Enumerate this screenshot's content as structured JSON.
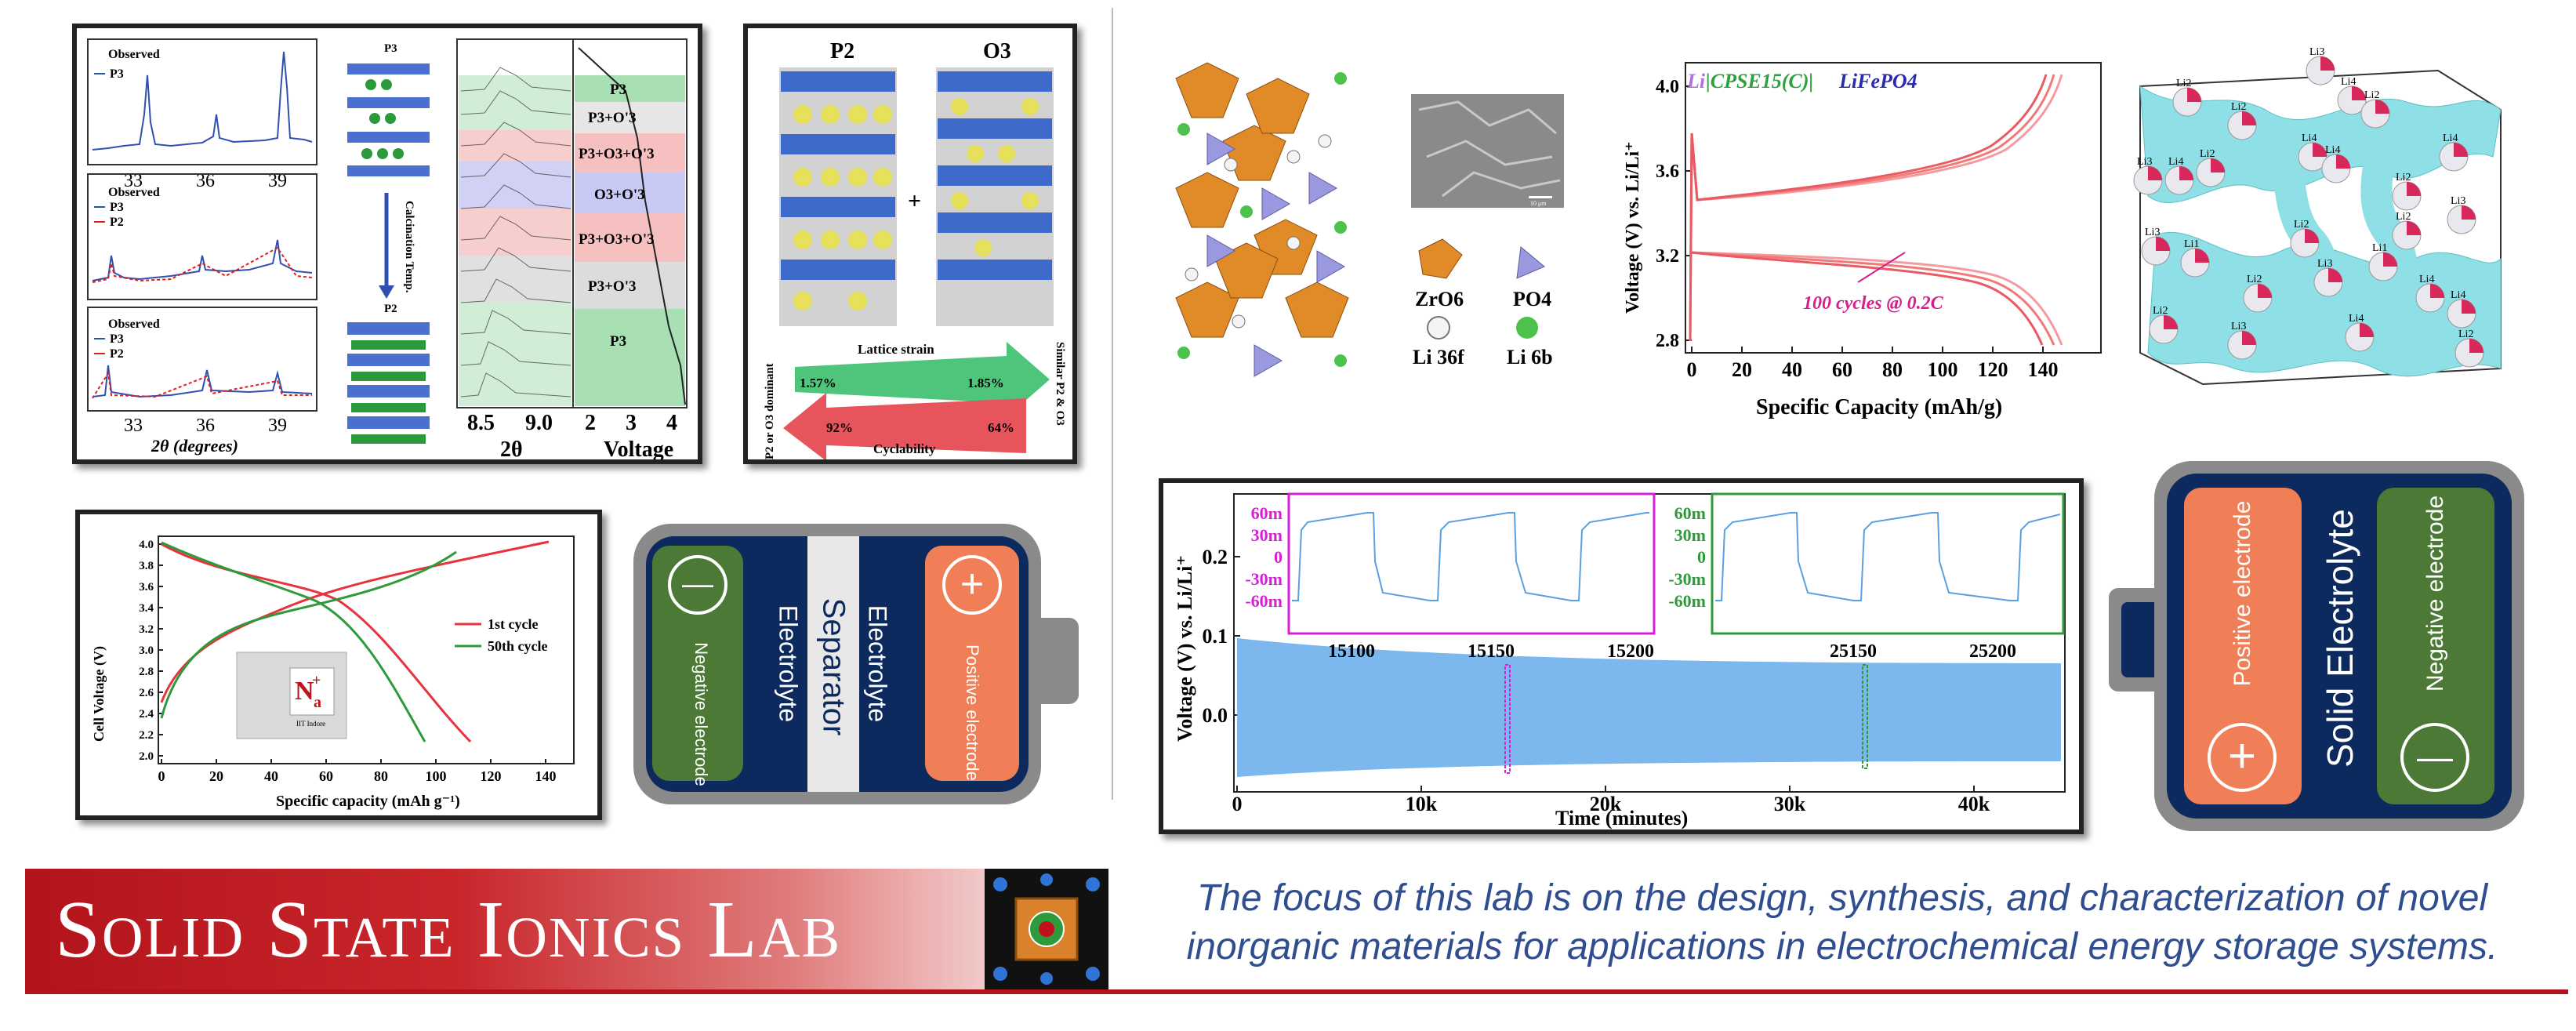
{
  "footer": {
    "lab_name": "Solid State Ionics Lab",
    "description": "The focus of this lab is on the design, synthesis, and characterization of novel inorganic materials for applications in electrochemical energy storage systems."
  },
  "xrd_panel": {
    "legend_top": [
      "Observed",
      "P3"
    ],
    "legend_mid": [
      "Observed",
      "P3",
      "P2"
    ],
    "legend_bot": [
      "Observed",
      "P3",
      "P2"
    ],
    "ticks": [
      "33",
      "36",
      "39"
    ],
    "xlabel": "2θ (degrees)",
    "struct_top": "P3",
    "struct_bot": "P2",
    "arrow_label": "Calcination Temp.",
    "insitu_ticks": [
      "8.5",
      "9.0"
    ],
    "insitu_xlabel": "2θ",
    "voltage_ticks": [
      "2",
      "3",
      "4"
    ],
    "voltage_xlabel": "Voltage",
    "phases": [
      "P3",
      "P3+O'3",
      "P3+O3+O'3",
      "O3+O'3",
      "P3+O3+O'3",
      "P3+O'3",
      "P3"
    ]
  },
  "p2o3_panel": {
    "col_left": "P2",
    "col_right": "O3",
    "plus": "+",
    "lattice_label": "Lattice strain",
    "lattice_left": "1.57%",
    "lattice_right": "1.85%",
    "cyc_label": "Cyclability",
    "cyc_left": "92%",
    "cyc_right": "64%",
    "side_left": "P2 or O3 dominant",
    "side_right": "Similar P2 & O3"
  },
  "cell_panel": {
    "ylabel": "Cell Voltage (V)",
    "xlabel": "Specific capacity (mAh g⁻¹)",
    "yticks": [
      "4.0",
      "3.8",
      "3.6",
      "3.4",
      "3.2",
      "3.0",
      "2.8",
      "2.6",
      "2.4",
      "2.2",
      "2.0"
    ],
    "xticks": [
      "0",
      "20",
      "40",
      "60",
      "80",
      "100",
      "120",
      "140"
    ],
    "legend1": "1st cycle",
    "legend2": "50th cycle",
    "pouch_logo_n": "N",
    "pouch_logo_a": "a",
    "pouch_logo_plus": "+",
    "pouch_caption": "IIT Indore",
    "colors": {
      "first": "#e8323c",
      "fiftieth": "#2e9a3c"
    }
  },
  "battery_left": {
    "negative": "Negative electrode",
    "electrolyte_left": "Electrolyte",
    "separator": "Separator",
    "electrolyte_right": "Electrolyte",
    "positive": "Positive electrode",
    "minus_symbol": "—",
    "plus_symbol": "+"
  },
  "battery_right": {
    "positive": "Positive electrode",
    "electrolyte": "Solid Electrolyte",
    "negative": "Negative electrode",
    "plus_symbol": "+",
    "minus_symbol": "—"
  },
  "nasicon": {
    "legend_zr": "ZrO6",
    "legend_po": "PO4",
    "legend_li36": "Li 36f",
    "legend_li6": "Li 6b",
    "scale": "10 μm"
  },
  "lfp_chart": {
    "title_li": "Li",
    "title_mid": "|CPSE15(C)|",
    "title_lfp": "LiFePO4",
    "annotation": "100 cycles @ 0.2C",
    "ylabel": "Voltage (V) vs. Li/Li⁺",
    "xlabel": "Specific Capacity (mAh/g)",
    "yticks": [
      "4.0",
      "3.6",
      "3.2",
      "2.8"
    ],
    "xticks": [
      "0",
      "20",
      "40",
      "60",
      "80",
      "100",
      "120",
      "140"
    ]
  },
  "li_sites": {
    "labels": [
      "Li3",
      "Li2",
      "Li4",
      "Li2",
      "Li2",
      "Li4",
      "Li2",
      "Li4",
      "Li3",
      "Li4",
      "Li4",
      "Li2",
      "Li2",
      "Li3",
      "Li3",
      "Li1",
      "Li3",
      "Li1",
      "Li2",
      "Li4",
      "Li2",
      "Li4",
      "Li2",
      "Li3",
      "Li4",
      "Li2"
    ]
  },
  "cycling_chart": {
    "ylabel": "Voltage (V) vs. Li/Li⁺",
    "xlabel": "Time (minutes)",
    "yticks": [
      "0.2",
      "0.1",
      "0.0"
    ],
    "xticks": [
      "0",
      "10k",
      "20k",
      "30k",
      "40k"
    ],
    "inset1_yticks": [
      "60m",
      "30m",
      "0",
      "-30m",
      "-60m"
    ],
    "inset1_xticks": [
      "15100",
      "15150",
      "15200"
    ],
    "inset2_yticks": [
      "60m",
      "30m",
      "0",
      "-30m",
      "-60m"
    ],
    "inset2_xticks": [
      "25150",
      "25200"
    ],
    "colors": {
      "fill": "#7cb8ee",
      "inset1": "#d61fd6",
      "inset2": "#2f9a3a"
    }
  }
}
